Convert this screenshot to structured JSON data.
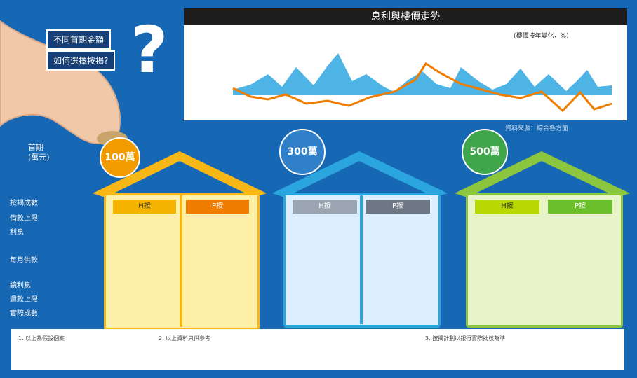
{
  "question": {
    "line1": "不同首期金額",
    "line2": "如何選擇按揭?",
    "mark": "?"
  },
  "chart": {
    "title": "息利與樓價走勢",
    "legend": "(樓價按年變化，%)",
    "source": "資料來源：綜合各方面"
  },
  "deposit_label": {
    "line1": "首期",
    "line2": "(萬元)"
  },
  "houses": [
    {
      "amount": "100萬",
      "col1": "H按",
      "col2": "P按",
      "colors": {
        "roof": "#f7b717",
        "body": "#fff0a8",
        "head1": "#f5b400",
        "head2": "#f07d00"
      }
    },
    {
      "amount": "300萬",
      "col1": "H按",
      "col2": "P按",
      "colors": {
        "roof": "#2aa5de",
        "body": "#dcefff",
        "head1": "#9aa5b1",
        "head2": "#6d7884"
      }
    },
    {
      "amount": "500萬",
      "col1": "H按",
      "col2": "P按",
      "colors": {
        "roof": "#8cc63f",
        "body": "#e8f3c8",
        "head1": "#b7d800",
        "head2": "#6bbf2a"
      }
    }
  ],
  "rows": [
    "按揭成數",
    "借款上限",
    "利息",
    "每月供款",
    "總利息",
    "還款上限",
    "實際成數"
  ],
  "notes": [
    "1. 以上為假設個案",
    "2. 以上資料只供參考",
    "3. 按揭計劃以銀行實際批核為準"
  ],
  "colors": {
    "background": "#1667b4",
    "chart_area": "#33aee8",
    "chart_line": "#f07d00"
  }
}
